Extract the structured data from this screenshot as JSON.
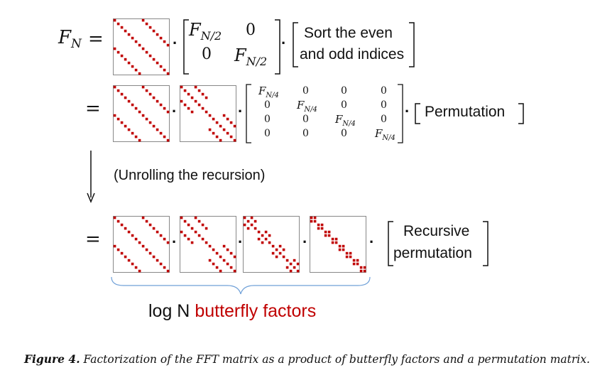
{
  "equation": {
    "lhs": "F",
    "lhs_sub": "N",
    "equals": "=",
    "row1": {
      "block": [
        [
          "F",
          "N/2",
          "0"
        ],
        [
          "0",
          "F",
          "N/2"
        ]
      ],
      "sort_line1": "Sort the even",
      "sort_line2": "and odd indices"
    },
    "row2": {
      "cells": [
        [
          "F_{N/4}",
          "0",
          "0",
          "0"
        ],
        [
          "0",
          "F_{N/4}",
          "0",
          "0"
        ],
        [
          "0",
          "0",
          "F_{N/4}",
          "0"
        ],
        [
          "0",
          "0",
          "0",
          "F_{N/4}"
        ]
      ],
      "f": "F",
      "sub": "N/4",
      "zero": "0",
      "permutation": "Permutation"
    },
    "unroll_text": "(Unrolling the recursion)",
    "row3": {
      "recursive_line1": "Recursive",
      "recursive_line2": "permutation"
    },
    "brace_label_prefix": "log N",
    "brace_label_highlight": "butterfly factors",
    "dot": "·"
  },
  "caption": {
    "label": "Figure 4.",
    "text": "Factorization of the FFT matrix as a product of butterfly factors and a permutation matrix."
  },
  "colors": {
    "accent_red": "#c00000",
    "matrix_border": "#888888"
  }
}
